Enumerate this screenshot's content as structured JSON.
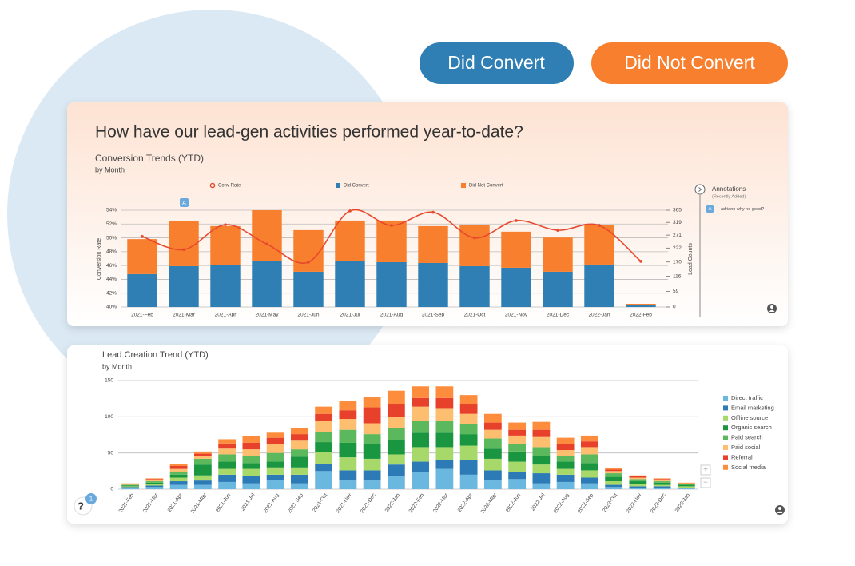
{
  "buttons": [
    "Did Convert",
    "Did Not Convert"
  ],
  "headline": "How have our lead-gen activities performed year-to-date?",
  "annotations": {
    "title": "Annotations",
    "subtitle": "(Recently Added)",
    "chart_marker": "A",
    "items": [
      {
        "marker": "A",
        "text": "adriano why no good?"
      }
    ]
  },
  "help": {
    "label": "?",
    "badge": "1"
  },
  "zoom": [
    "+",
    "−"
  ],
  "chart_data": [
    {
      "type": "bar",
      "title": "Conversion Trends (YTD)",
      "subtitle": "by Month",
      "ylabel": "Conversion Rate",
      "y2label": "Lead Counts",
      "stacked": true,
      "legend": "top",
      "grid": true,
      "categories": [
        "2021-Feb",
        "2021-Mar",
        "2021-Apr",
        "2021-May",
        "2021-Jun",
        "2021-Jul",
        "2021-Aug",
        "2021-Sep",
        "2021-Oct",
        "2021-Nov",
        "2021-Dec",
        "2022-Jan",
        "2022-Feb"
      ],
      "ylim": [
        40,
        54
      ],
      "yticks": [
        {
          "value": 40,
          "label": "40%"
        },
        {
          "value": 42,
          "label": "42%"
        },
        {
          "value": 44,
          "label": "44%"
        },
        {
          "value": 46,
          "label": "46%"
        },
        {
          "value": 48,
          "label": "48%"
        },
        {
          "value": 50,
          "label": "50%"
        },
        {
          "value": 52,
          "label": "52%"
        },
        {
          "value": 54,
          "label": "54%"
        }
      ],
      "y2lim": [
        0,
        365
      ],
      "y2ticks": [
        0,
        59,
        116,
        170,
        222,
        271,
        319,
        365
      ],
      "series": [
        {
          "name": "Conv Rate",
          "type": "line",
          "color": "#e8492c",
          "values": [
            50.2,
            48.3,
            51.9,
            49.1,
            46.5,
            53.9,
            51.8,
            53.7,
            50.0,
            52.5,
            51.1,
            51.8,
            46.6
          ]
        },
        {
          "name": "Did Convert",
          "type": "bar",
          "axis": "y2",
          "color": "#2f7fb5",
          "values": [
            124,
            154,
            157,
            175,
            133,
            175,
            169,
            166,
            154,
            148,
            133,
            160,
            6
          ]
        },
        {
          "name": "Did Not Convert",
          "type": "bar",
          "axis": "y2",
          "color": "#f77f2e",
          "values": [
            132,
            169,
            148,
            190,
            157,
            151,
            157,
            139,
            154,
            136,
            129,
            148,
            6
          ]
        }
      ]
    },
    {
      "type": "bar",
      "title": "Lead Creation Trend (YTD)",
      "subtitle": "by Month",
      "stacked": true,
      "legend": "right",
      "grid": true,
      "categories": [
        "2021-Feb",
        "2021-Mar",
        "2021-Apr",
        "2021-May",
        "2021-Jun",
        "2021-Jul",
        "2021-Aug",
        "2021-Sep",
        "2021-Oct",
        "2021-Nov",
        "2021-Dec",
        "2022-Jan",
        "2022-Feb",
        "2022-Mar",
        "2022-Apr",
        "2022-May",
        "2022-Jun",
        "2022-Jul",
        "2022-Aug",
        "2022-Sep",
        "2022-Oct",
        "2022-Nov",
        "2022-Dec",
        "2023-Jan"
      ],
      "ylim": [
        0,
        150
      ],
      "yticks": [
        0,
        50,
        100,
        150
      ],
      "series": [
        {
          "name": "Direct traffic",
          "color": "#6ab7e0",
          "values": [
            2,
            3,
            6,
            6,
            10,
            8,
            12,
            8,
            25,
            12,
            12,
            18,
            24,
            28,
            20,
            12,
            14,
            8,
            10,
            8,
            3,
            2,
            2,
            1
          ]
        },
        {
          "name": "Email marketing",
          "color": "#2c7bb6",
          "values": [
            1,
            2,
            5,
            6,
            10,
            10,
            8,
            12,
            10,
            14,
            14,
            16,
            14,
            12,
            20,
            14,
            10,
            14,
            10,
            8,
            3,
            2,
            2,
            1
          ]
        },
        {
          "name": "Offline source",
          "color": "#a6d96a",
          "values": [
            1,
            2,
            5,
            7,
            8,
            10,
            10,
            10,
            16,
            18,
            16,
            14,
            20,
            18,
            20,
            16,
            14,
            12,
            8,
            10,
            5,
            3,
            2,
            2
          ]
        },
        {
          "name": "Organic search",
          "color": "#1a9641",
          "values": [
            1,
            2,
            4,
            15,
            10,
            8,
            8,
            15,
            14,
            20,
            20,
            20,
            20,
            20,
            16,
            14,
            14,
            12,
            10,
            10,
            6,
            4,
            3,
            2
          ]
        },
        {
          "name": "Paid search",
          "color": "#5cb85c",
          "values": [
            1,
            2,
            4,
            8,
            10,
            10,
            12,
            10,
            14,
            18,
            14,
            16,
            16,
            16,
            14,
            14,
            10,
            12,
            8,
            12,
            5,
            3,
            2,
            1
          ]
        },
        {
          "name": "Paid social",
          "color": "#fdbf6f",
          "values": [
            1,
            2,
            4,
            4,
            8,
            9,
            12,
            12,
            15,
            15,
            15,
            16,
            20,
            18,
            14,
            12,
            12,
            14,
            8,
            10,
            3,
            2,
            2,
            1
          ]
        },
        {
          "name": "Referral",
          "color": "#e8412b",
          "values": [
            0,
            1,
            4,
            3,
            7,
            9,
            9,
            9,
            10,
            12,
            22,
            18,
            12,
            14,
            14,
            10,
            8,
            10,
            8,
            8,
            2,
            2,
            1,
            0
          ]
        },
        {
          "name": "Social media",
          "color": "#fd8d3c",
          "values": [
            1,
            1,
            3,
            3,
            6,
            9,
            7,
            8,
            10,
            13,
            14,
            18,
            16,
            16,
            12,
            12,
            10,
            11,
            9,
            8,
            2,
            1,
            1,
            1
          ]
        }
      ]
    }
  ]
}
